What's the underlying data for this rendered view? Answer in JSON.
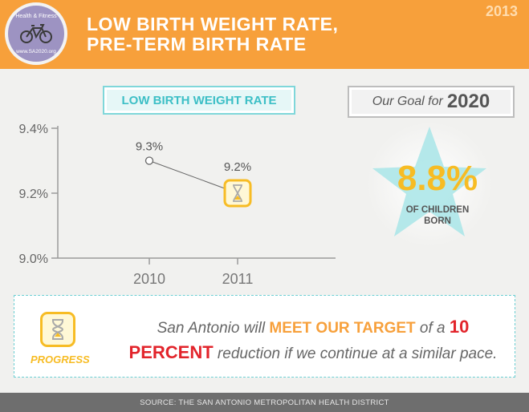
{
  "header": {
    "logo_top": "Health & Fitness",
    "logo_bottom": "www.SA2020.org",
    "title_line1": "LOW BIRTH WEIGHT RATE,",
    "title_line2": "PRE-TERM BIRTH RATE",
    "year": "2013"
  },
  "goal": {
    "label": "Our Goal for",
    "year": "2020",
    "value": "8.8%",
    "sub_line1": "OF CHILDREN",
    "sub_line2": "BORN"
  },
  "chart_data": {
    "type": "line",
    "title": "LOW BIRTH WEIGHT RATE",
    "categories": [
      "2010",
      "2011"
    ],
    "series": [
      {
        "values": [
          9.3,
          9.2
        ]
      }
    ],
    "data_labels": [
      "9.3%",
      "9.2%"
    ],
    "y_ticks": [
      9.0,
      9.2,
      9.4
    ],
    "y_tick_labels": [
      "9.0%",
      "9.2%",
      "9.4%"
    ],
    "ylim": [
      9.0,
      9.4
    ],
    "xlabel": "",
    "ylabel": "",
    "grid": false
  },
  "progress": {
    "label": "PROGRESS",
    "text_a": "San Antonio will ",
    "text_b": "MEET OUR TARGET",
    "text_c": " of a ",
    "text_d": "10",
    "text_e": "PERCENT",
    "text_f": " reduction if we continue at a similar pace."
  },
  "footer": {
    "source": "SOURCE: THE SAN ANTONIO METROPOLITAN HEALTH DISTRICT"
  },
  "colors": {
    "header": "#f7a03b",
    "accent_teal": "#3cbfc6",
    "accent_yellow": "#f7bc24",
    "accent_red": "#e2242b",
    "footer": "#6e6e6e"
  },
  "icons": {
    "logo": "bicycle-icon",
    "progress": "hourglass-icon",
    "goal": "star-icon"
  }
}
